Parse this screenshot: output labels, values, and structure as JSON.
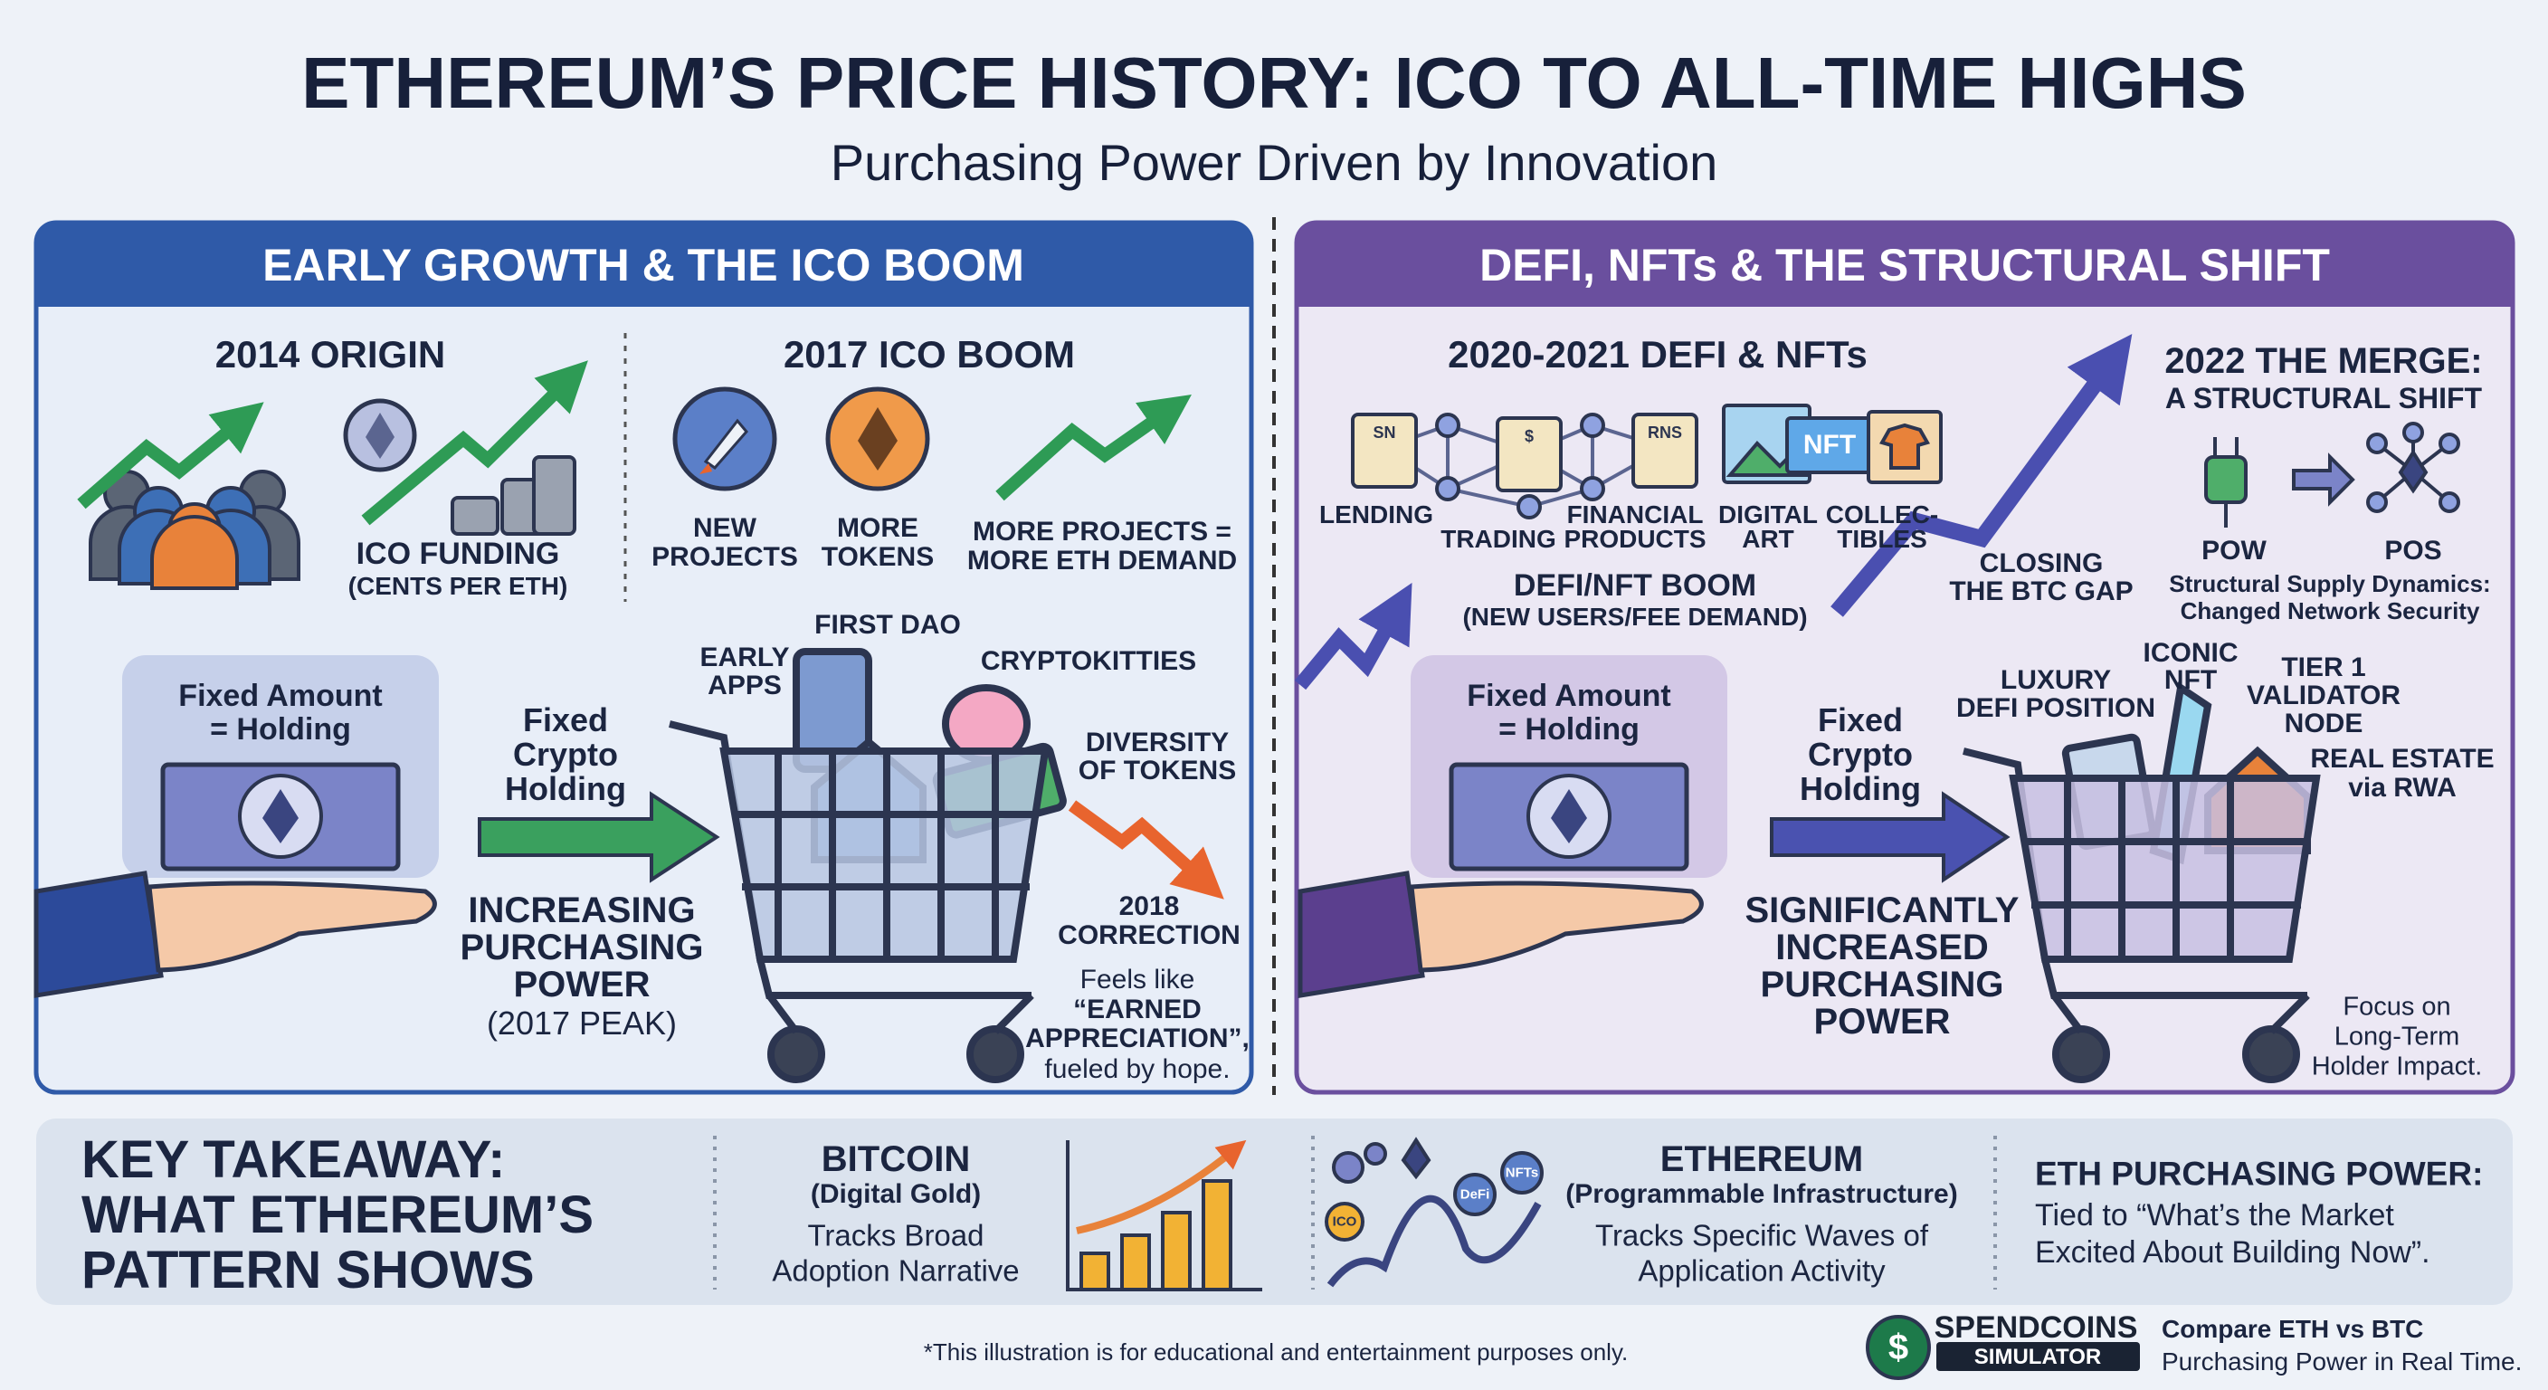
{
  "header": {
    "title": "ETHEREUM’S PRICE HISTORY: ICO TO ALL-TIME HIGHS",
    "subtitle": "Purchasing Power Driven by Innovation"
  },
  "left_panel": {
    "title": "EARLY GROWTH & THE ICO BOOM",
    "origin": {
      "heading": "2014 ORIGIN",
      "caption": [
        "ICO FUNDING",
        "(CENTS PER ETH)"
      ]
    },
    "ico_boom": {
      "heading": "2017 ICO BOOM",
      "items": [
        [
          "NEW",
          "PROJECTS"
        ],
        [
          "MORE",
          "TOKENS"
        ],
        [
          "MORE PROJECTS =",
          "MORE ETH DEMAND"
        ]
      ]
    },
    "holding": {
      "box": [
        "Fixed Amount",
        "= Holding"
      ],
      "arrow_label": [
        "Fixed",
        "Crypto",
        "Holding"
      ],
      "result": [
        "INCREASING",
        "PURCHASING",
        "POWER"
      ],
      "note": "(2017 PEAK)"
    },
    "cart_labels": {
      "first_dao": "FIRST DAO",
      "early_apps": [
        "EARLY",
        "APPS"
      ],
      "cryptokitties": "CRYPTOKITTIES",
      "diversity": [
        "DIVERSITY",
        "OF TOKENS"
      ]
    },
    "correction": [
      "2018",
      "CORRECTION"
    ],
    "quote": [
      "Feels like",
      "“EARNED",
      "APPRECIATION”,",
      "fueled by hope."
    ]
  },
  "right_panel": {
    "title": "DEFI, NFTs & THE STRUCTURAL SHIFT",
    "defi": {
      "heading": "2020-2021 DEFI & NFTs",
      "icon_texts": [
        "SN",
        "$",
        "RNS",
        "NFT"
      ],
      "labels": [
        "LENDING",
        "TRADING",
        [
          "FINANCIAL",
          "PRODUCTS"
        ],
        [
          "DIGITAL",
          "ART"
        ],
        [
          "COLLEC-",
          "TIBLES"
        ]
      ],
      "boom": [
        "DEFI/NFT BOOM",
        "(NEW USERS/FEE DEMAND)"
      ]
    },
    "gap": [
      "CLOSING",
      "THE BTC GAP"
    ],
    "merge": {
      "heading": [
        "2022 THE MERGE:",
        "A STRUCTURAL SHIFT"
      ],
      "from": "POW",
      "to": "POS",
      "caption": [
        "Structural Supply Dynamics:",
        "Changed Network Security"
      ]
    },
    "holding": {
      "box": [
        "Fixed Amount",
        "= Holding"
      ],
      "arrow_label": [
        "Fixed",
        "Crypto",
        "Holding"
      ],
      "result": [
        "SIGNIFICANTLY",
        "INCREASED",
        "PURCHASING",
        "POWER"
      ]
    },
    "cart_labels": {
      "iconic_nft": [
        "ICONIC",
        "NFT"
      ],
      "luxury": [
        "LUXURY",
        "DEFI POSITION"
      ],
      "validator": [
        "TIER 1",
        "VALIDATOR",
        "NODE"
      ],
      "real_estate": [
        "REAL ESTATE",
        "via RWA"
      ]
    },
    "focus": [
      "Focus on",
      "Long-Term",
      "Holder Impact."
    ]
  },
  "takeaway": {
    "heading": [
      "KEY TAKEAWAY:",
      "WHAT ETHEREUM’S",
      "PATTERN SHOWS"
    ],
    "bitcoin": {
      "name": "BITCOIN",
      "tag": "(Digital Gold)",
      "desc": [
        "Tracks Broad",
        "Adoption Narrative"
      ]
    },
    "ethereum": {
      "name": "ETHEREUM",
      "tag": "(Programmable Infrastructure)",
      "desc": [
        "Tracks Specific Waves of",
        "Application Activity"
      ],
      "icon_labels": [
        "ICO",
        "DeFi",
        "NFTs"
      ]
    },
    "power": {
      "heading": "ETH PURCHASING POWER:",
      "desc": [
        "Tied to “What’s the Market",
        "Excited About Building Now”."
      ]
    }
  },
  "footer": {
    "disclaimer": "*This illustration is for educational and entertainment purposes only.",
    "brand": {
      "symbol": "$",
      "name": "SPENDCOINS",
      "product": "SIMULATOR",
      "tagline": [
        "Compare ETH vs BTC",
        "Purchasing Power in Real Time."
      ]
    }
  }
}
